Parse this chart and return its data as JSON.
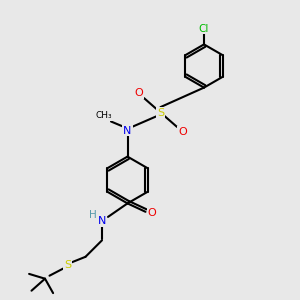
{
  "bg_color": "#e8e8e8",
  "line_color": "#000000",
  "bond_width": 1.5,
  "atom_colors": {
    "N": "#0000ee",
    "O": "#ee0000",
    "S": "#cccc00",
    "Cl": "#00bb00",
    "C": "#000000",
    "H": "#5599aa"
  }
}
